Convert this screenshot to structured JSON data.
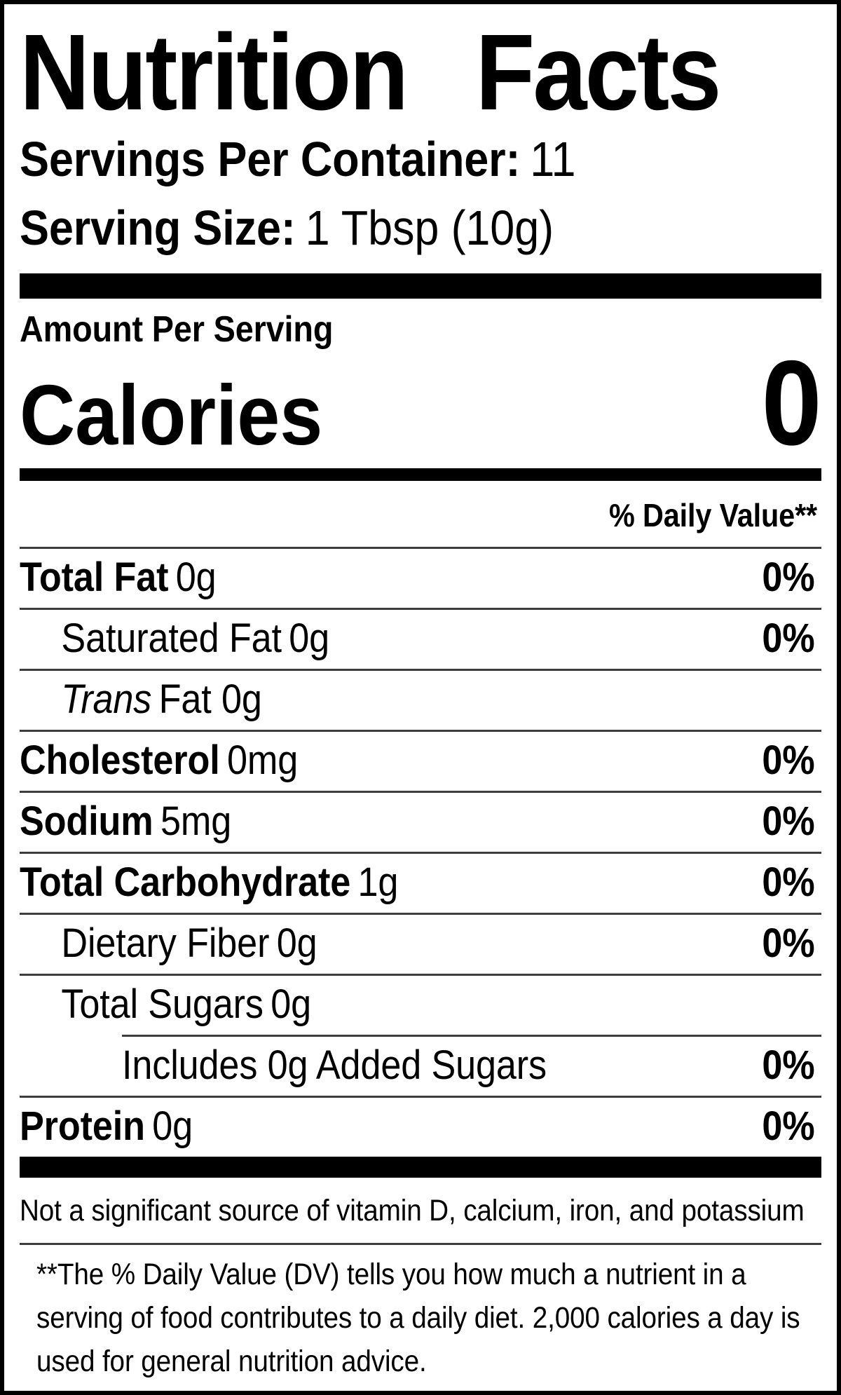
{
  "title": "Nutrition Facts",
  "servings_per_container": {
    "label": "Servings Per Container:",
    "value": "11"
  },
  "serving_size": {
    "label": "Serving Size:",
    "value": "1 Tbsp (10g)"
  },
  "amount_per_serving": "Amount Per Serving",
  "calories": {
    "label": "Calories",
    "value": "0"
  },
  "daily_value_header": "% Daily Value**",
  "nutrients": [
    {
      "name": "Total Fat",
      "amount": "0g",
      "dv": "0%"
    },
    {
      "name": "Saturated Fat",
      "amount": "0g",
      "dv": "0%"
    },
    {
      "name": "Trans",
      "amount": "Fat 0g",
      "dv": ""
    },
    {
      "name": "Cholesterol",
      "amount": "0mg",
      "dv": "0%"
    },
    {
      "name": "Sodium",
      "amount": "5mg",
      "dv": "0%"
    },
    {
      "name": "Total Carbohydrate",
      "amount": "1g",
      "dv": "0%"
    },
    {
      "name": "Dietary Fiber",
      "amount": "0g",
      "dv": "0%"
    },
    {
      "name": "Total Sugars",
      "amount": "0g",
      "dv": ""
    },
    {
      "name": "Includes 0g Added Sugars",
      "amount": "",
      "dv": "0%"
    },
    {
      "name": "Protein",
      "amount": "0g",
      "dv": "0%"
    }
  ],
  "footnotes": {
    "not_significant": "Not a significant source of vitamin D, calcium, iron, and potassium",
    "daily_value_note": "**The % Daily Value (DV) tells you how much a nutrient in a serving of food contributes to a daily diet. 2,000 calories a day is used for general nutrition advice."
  },
  "colors": {
    "text": "#000000",
    "background": "#ffffff",
    "rule": "#3d3d3d",
    "bar": "#000000"
  }
}
